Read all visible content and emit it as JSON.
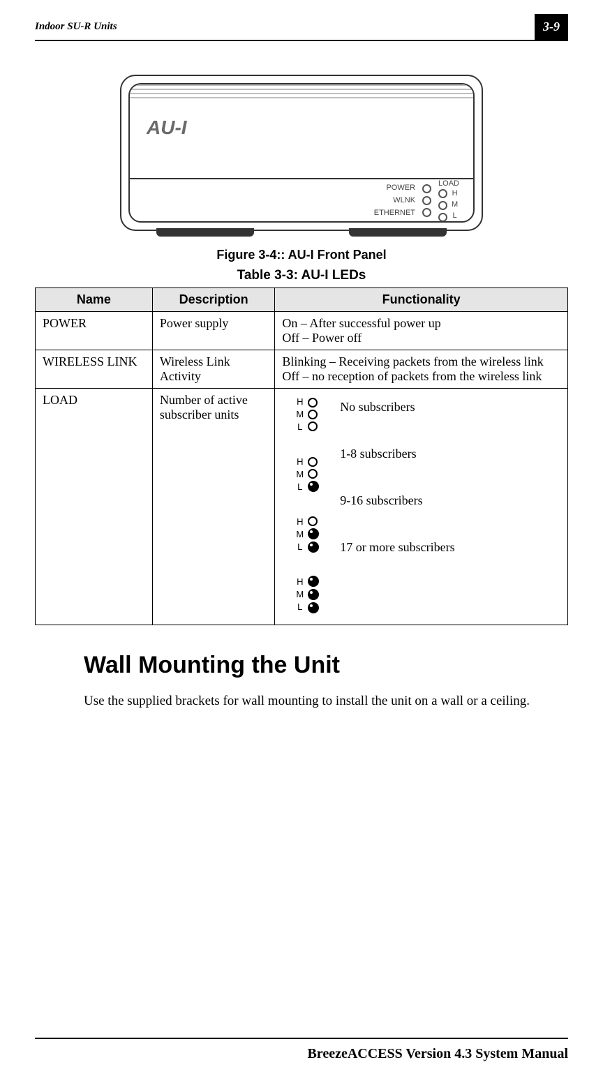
{
  "header": {
    "section": "Indoor SU-R Units",
    "page_number": "3-9"
  },
  "device": {
    "model_label": "AU-I",
    "panel": {
      "load_label": "LOAD",
      "rows": [
        "POWER",
        "WLNK",
        "ETHERNET"
      ],
      "hml": [
        "H",
        "M",
        "L"
      ]
    }
  },
  "figure_caption": "Figure 3-4:: AU-I Front Panel",
  "table_caption": "Table 3-3: AU-I LEDs",
  "table": {
    "headers": [
      "Name",
      "Description",
      "Functionality"
    ],
    "rows": [
      {
        "name": "POWER",
        "description": "Power supply",
        "functionality": "On – After successful power up\nOff – Power off"
      },
      {
        "name": "WIRELESS LINK",
        "description": "Wireless Link Activity",
        "functionality": "Blinking – Receiving packets from the wireless link\nOff – no reception of packets from the wireless link"
      },
      {
        "name": "LOAD",
        "description": "Number of active subscriber units",
        "load_states": [
          {
            "h": false,
            "m": false,
            "l": false,
            "text": "No subscribers"
          },
          {
            "h": false,
            "m": false,
            "l": true,
            "text": "1-8 subscribers"
          },
          {
            "h": false,
            "m": true,
            "l": true,
            "text": "9-16 subscribers"
          },
          {
            "h": true,
            "m": true,
            "l": true,
            "text": "17 or more subscribers"
          }
        ],
        "hml_labels": [
          "H",
          "M",
          "L"
        ]
      }
    ]
  },
  "section": {
    "title": "Wall Mounting the Unit",
    "body": "Use the supplied brackets for wall mounting to install the unit on a wall or a ceiling."
  },
  "footer": {
    "text": "BreezeACCESS Version 4.3 System Manual"
  },
  "colors": {
    "header_bg": "#000000",
    "table_header_bg": "#e5e5e5",
    "text": "#000000"
  }
}
